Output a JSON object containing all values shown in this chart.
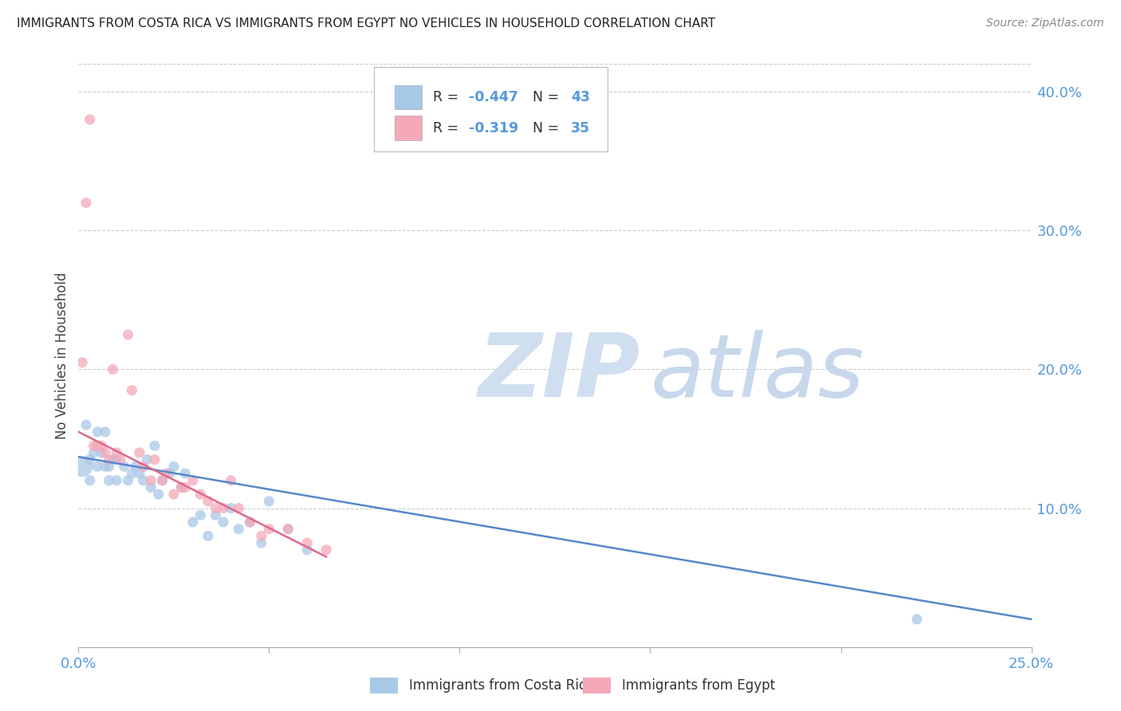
{
  "title": "IMMIGRANTS FROM COSTA RICA VS IMMIGRANTS FROM EGYPT NO VEHICLES IN HOUSEHOLD CORRELATION CHART",
  "source": "Source: ZipAtlas.com",
  "ylabel": "No Vehicles in Household",
  "watermark_zip": "ZIP",
  "watermark_atlas": "atlas",
  "xlim": [
    0.0,
    0.25
  ],
  "ylim": [
    0.0,
    0.42
  ],
  "xticks": [
    0.0,
    0.05,
    0.1,
    0.15,
    0.2,
    0.25
  ],
  "xtick_labels": [
    "0.0%",
    "",
    "",
    "",
    "",
    "25.0%"
  ],
  "yticks_right": [
    0.1,
    0.2,
    0.3,
    0.4
  ],
  "ytick_right_labels": [
    "10.0%",
    "20.0%",
    "30.0%",
    "40.0%"
  ],
  "legend_R1": "-0.447",
  "legend_N1": "43",
  "legend_R2": "-0.319",
  "legend_N2": "35",
  "color_blue": "#a8c8e8",
  "color_pink": "#f5a8b8",
  "color_blue_line": "#5588cc",
  "color_pink_line": "#e06888",
  "color_blue_text": "#5599dd",
  "color_pink_text": "#5599dd",
  "color_title": "#222222",
  "color_source": "#888888",
  "color_watermark_zip": "#d0dff0",
  "color_watermark_atlas": "#c8d8ec",
  "color_grid": "#cccccc",
  "costa_rica_x": [
    0.001,
    0.002,
    0.003,
    0.003,
    0.004,
    0.005,
    0.005,
    0.006,
    0.007,
    0.007,
    0.008,
    0.008,
    0.009,
    0.01,
    0.01,
    0.012,
    0.013,
    0.014,
    0.015,
    0.016,
    0.017,
    0.018,
    0.019,
    0.02,
    0.021,
    0.022,
    0.024,
    0.025,
    0.027,
    0.028,
    0.03,
    0.032,
    0.034,
    0.036,
    0.038,
    0.04,
    0.042,
    0.045,
    0.048,
    0.05,
    0.055,
    0.06,
    0.22
  ],
  "costa_rica_y": [
    0.13,
    0.16,
    0.135,
    0.12,
    0.14,
    0.155,
    0.13,
    0.14,
    0.155,
    0.13,
    0.13,
    0.12,
    0.135,
    0.135,
    0.12,
    0.13,
    0.12,
    0.125,
    0.13,
    0.125,
    0.12,
    0.135,
    0.115,
    0.145,
    0.11,
    0.12,
    0.125,
    0.13,
    0.115,
    0.125,
    0.09,
    0.095,
    0.08,
    0.095,
    0.09,
    0.1,
    0.085,
    0.09,
    0.075,
    0.105,
    0.085,
    0.07,
    0.02
  ],
  "costa_rica_sizes": [
    350,
    90,
    90,
    90,
    90,
    90,
    90,
    90,
    90,
    90,
    90,
    90,
    90,
    90,
    90,
    90,
    90,
    90,
    90,
    90,
    90,
    90,
    90,
    90,
    90,
    90,
    90,
    90,
    90,
    90,
    90,
    90,
    90,
    90,
    90,
    90,
    90,
    90,
    90,
    90,
    90,
    90,
    90
  ],
  "egypt_x": [
    0.001,
    0.002,
    0.003,
    0.004,
    0.005,
    0.006,
    0.007,
    0.008,
    0.009,
    0.01,
    0.011,
    0.013,
    0.014,
    0.016,
    0.017,
    0.019,
    0.02,
    0.022,
    0.023,
    0.025,
    0.027,
    0.028,
    0.03,
    0.032,
    0.034,
    0.036,
    0.038,
    0.04,
    0.042,
    0.045,
    0.048,
    0.05,
    0.055,
    0.06,
    0.065
  ],
  "egypt_y": [
    0.205,
    0.32,
    0.38,
    0.145,
    0.145,
    0.145,
    0.14,
    0.135,
    0.2,
    0.14,
    0.135,
    0.225,
    0.185,
    0.14,
    0.13,
    0.12,
    0.135,
    0.12,
    0.125,
    0.11,
    0.115,
    0.115,
    0.12,
    0.11,
    0.105,
    0.1,
    0.1,
    0.12,
    0.1,
    0.09,
    0.08,
    0.085,
    0.085,
    0.075,
    0.07
  ],
  "egypt_sizes": [
    90,
    90,
    90,
    90,
    90,
    90,
    90,
    90,
    90,
    90,
    90,
    90,
    90,
    90,
    90,
    90,
    90,
    90,
    90,
    90,
    90,
    90,
    90,
    90,
    90,
    90,
    90,
    90,
    90,
    90,
    90,
    90,
    90,
    90,
    90
  ],
  "trend_cr_x0": 0.0,
  "trend_cr_x1": 0.25,
  "trend_cr_y0": 0.137,
  "trend_cr_y1": 0.02,
  "trend_eg_x0": 0.0,
  "trend_eg_x1": 0.065,
  "trend_eg_y0": 0.155,
  "trend_eg_y1": 0.065
}
